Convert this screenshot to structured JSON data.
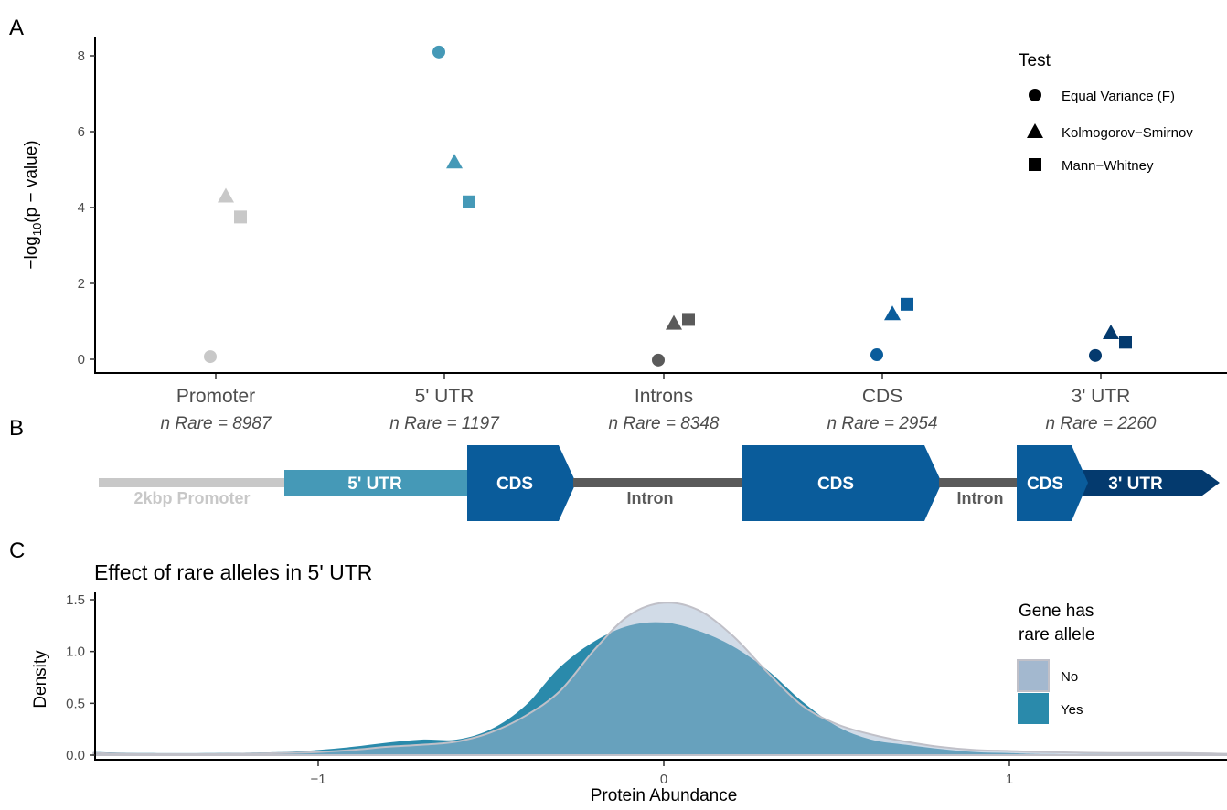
{
  "panels": {
    "a_label": "A",
    "b_label": "B",
    "c_label": "C"
  },
  "colors": {
    "promoter": "#c8c8c8",
    "utr5": "#4599b7",
    "intron": "#5a5a5a",
    "cds": "#0a5c9b",
    "utr3": "#043a6e",
    "density_no": "#a3b8cf",
    "density_yes": "#2a8aab"
  },
  "chart_data": [
    {
      "type": "scatter",
      "ylabel": "−log10(p − value)",
      "ylabel_main": "−log",
      "ylabel_sub": "10",
      "ylabel_rest": "(p − value)",
      "ylim": [
        -0.3,
        8.5
      ],
      "yticks": [
        "0",
        "2",
        "4",
        "6",
        "8"
      ],
      "categories": [
        "Promoter",
        "5' UTR",
        "Introns",
        "CDS",
        "3' UTR"
      ],
      "sublabels": [
        "n Rare = 8987",
        "n Rare = 1197",
        "n Rare = 8348",
        "n Rare = 2954",
        "n Rare = 2260"
      ],
      "legend": {
        "title": "Test",
        "entries": [
          "Equal Variance (F)",
          "Kolmogorov−Smirnov",
          "Mann−Whitney"
        ],
        "position": "top-right"
      },
      "series": [
        {
          "name": "Equal Variance (F)",
          "shape": "circle",
          "values": [
            0.07,
            8.1,
            -0.02,
            0.12,
            0.1
          ]
        },
        {
          "name": "Kolmogorov−Smirnov",
          "shape": "triangle",
          "values": [
            4.3,
            5.2,
            0.95,
            1.2,
            0.7
          ]
        },
        {
          "name": "Mann−Whitney",
          "shape": "square",
          "values": [
            3.75,
            4.15,
            1.05,
            1.45,
            0.45
          ]
        }
      ],
      "grid": false
    },
    {
      "type": "area",
      "title": "Effect of rare alleles in 5' UTR",
      "xlabel": "Protein Abundance",
      "ylabel": "Density",
      "xlim": [
        -1.65,
        1.65
      ],
      "ylim": [
        -0.03,
        1.52
      ],
      "xticks": [
        "−1",
        "0",
        "1"
      ],
      "yticks": [
        "0.0",
        "0.5",
        "1.0",
        "1.5"
      ],
      "legend": {
        "title_line1": "Gene has",
        "title_line2": "rare allele",
        "entries": [
          "No",
          "Yes"
        ],
        "position": "right"
      },
      "x": [
        -1.65,
        -1.5,
        -1.3,
        -1.1,
        -1.0,
        -0.9,
        -0.8,
        -0.7,
        -0.6,
        -0.5,
        -0.4,
        -0.3,
        -0.2,
        -0.1,
        0.0,
        0.1,
        0.2,
        0.3,
        0.4,
        0.5,
        0.6,
        0.7,
        0.8,
        0.9,
        1.0,
        1.1,
        1.3,
        1.5,
        1.65
      ],
      "series": [
        {
          "name": "No",
          "values": [
            0.02,
            0.01,
            0.01,
            0.02,
            0.03,
            0.05,
            0.08,
            0.1,
            0.13,
            0.22,
            0.38,
            0.62,
            1.02,
            1.35,
            1.47,
            1.4,
            1.15,
            0.8,
            0.48,
            0.3,
            0.2,
            0.13,
            0.08,
            0.05,
            0.04,
            0.03,
            0.02,
            0.02,
            0.01
          ]
        },
        {
          "name": "Yes",
          "values": [
            0.03,
            0.02,
            0.02,
            0.03,
            0.05,
            0.08,
            0.12,
            0.15,
            0.15,
            0.25,
            0.48,
            0.85,
            1.1,
            1.25,
            1.28,
            1.2,
            1.05,
            0.82,
            0.52,
            0.28,
            0.15,
            0.1,
            0.06,
            0.03,
            0.02,
            0.01,
            0.01,
            0.01,
            0.01
          ]
        }
      ],
      "grid": false
    }
  ],
  "gene_diagram": {
    "promoter_label": "2kbp Promoter",
    "utr5_label": "5' UTR",
    "cds1_label": "CDS",
    "intron1_label": "Intron",
    "cds2_label": "CDS",
    "intron2_label": "Intron",
    "cds3_label": "CDS",
    "utr3_label": "3' UTR"
  }
}
